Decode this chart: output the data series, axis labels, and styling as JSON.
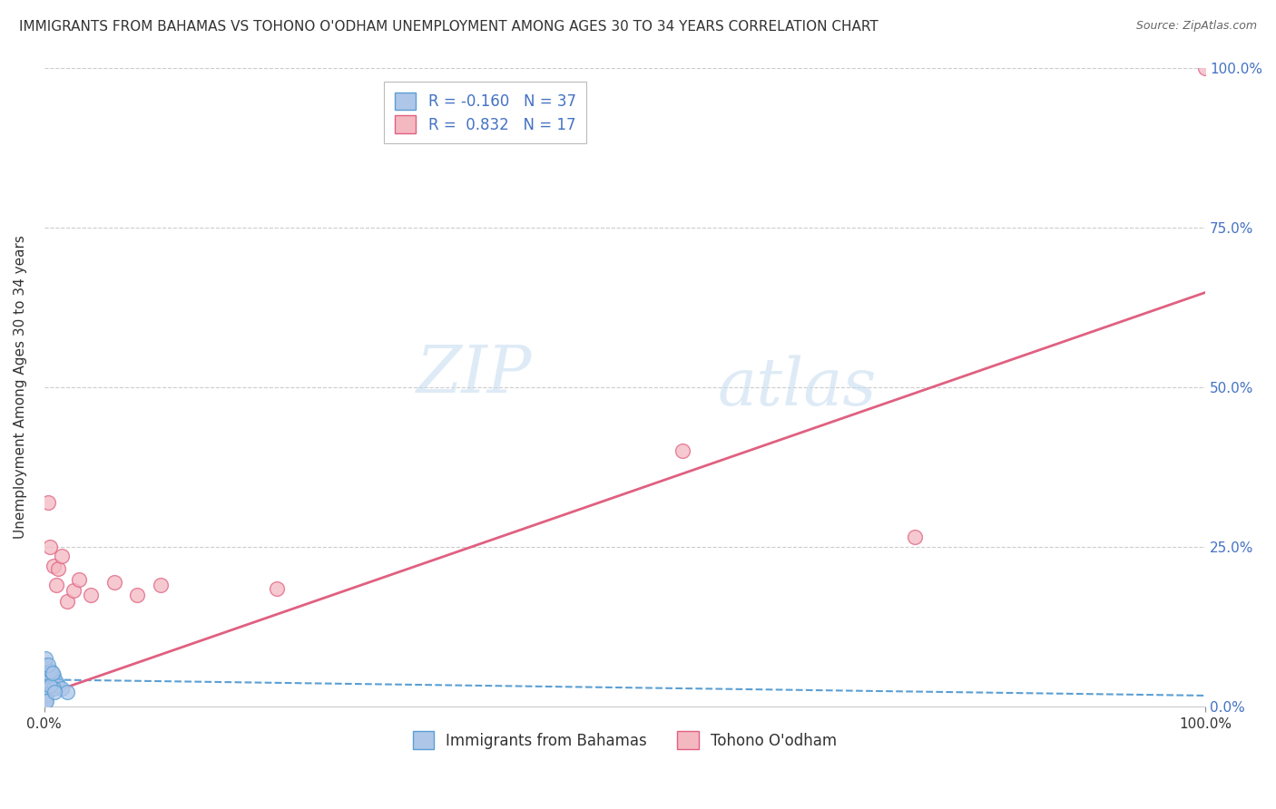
{
  "title": "IMMIGRANTS FROM BAHAMAS VS TOHONO O'ODHAM UNEMPLOYMENT AMONG AGES 30 TO 34 YEARS CORRELATION CHART",
  "source": "Source: ZipAtlas.com",
  "ylabel": "Unemployment Among Ages 30 to 34 years",
  "xlabel_blue": "Immigrants from Bahamas",
  "xlabel_pink": "Tohono O'odham",
  "xlim": [
    0,
    1.0
  ],
  "ylim": [
    0,
    1.0
  ],
  "xtick_vals": [
    0,
    1.0
  ],
  "xtick_labels": [
    "0.0%",
    "100.0%"
  ],
  "ytick_vals": [
    0,
    0.25,
    0.5,
    0.75,
    1.0
  ],
  "ytick_labels_right": [
    "0.0%",
    "25.0%",
    "50.0%",
    "75.0%",
    "100.0%"
  ],
  "blue_R": -0.16,
  "blue_N": 37,
  "pink_R": 0.832,
  "pink_N": 17,
  "blue_color": "#aec6e8",
  "pink_color": "#f4b8c1",
  "blue_edge_color": "#5a9fd4",
  "pink_edge_color": "#e06080",
  "blue_line_color": "#5a9fd4",
  "pink_line_color": "#e06080",
  "blue_scatter": [
    [
      0.001,
      0.045
    ],
    [
      0.001,
      0.038
    ],
    [
      0.001,
      0.028
    ],
    [
      0.001,
      0.022
    ],
    [
      0.002,
      0.048
    ],
    [
      0.002,
      0.038
    ],
    [
      0.002,
      0.032
    ],
    [
      0.003,
      0.055
    ],
    [
      0.003,
      0.048
    ],
    [
      0.004,
      0.042
    ],
    [
      0.004,
      0.038
    ],
    [
      0.005,
      0.052
    ],
    [
      0.005,
      0.045
    ],
    [
      0.006,
      0.042
    ],
    [
      0.007,
      0.038
    ],
    [
      0.008,
      0.048
    ],
    [
      0.01,
      0.038
    ],
    [
      0.012,
      0.033
    ],
    [
      0.015,
      0.028
    ],
    [
      0.02,
      0.022
    ],
    [
      0.001,
      0.055
    ],
    [
      0.001,
      0.065
    ],
    [
      0.002,
      0.06
    ],
    [
      0.003,
      0.052
    ],
    [
      0.004,
      0.028
    ],
    [
      0.001,
      0.018
    ],
    [
      0.001,
      0.014
    ],
    [
      0.002,
      0.018
    ],
    [
      0.006,
      0.055
    ],
    [
      0.008,
      0.028
    ],
    [
      0.001,
      0.009
    ],
    [
      0.002,
      0.009
    ],
    [
      0.001,
      0.075
    ],
    [
      0.003,
      0.065
    ],
    [
      0.005,
      0.032
    ],
    [
      0.007,
      0.052
    ],
    [
      0.009,
      0.022
    ]
  ],
  "pink_scatter": [
    [
      0.003,
      0.32
    ],
    [
      0.008,
      0.22
    ],
    [
      0.012,
      0.215
    ],
    [
      0.015,
      0.235
    ],
    [
      0.02,
      0.165
    ],
    [
      0.025,
      0.182
    ],
    [
      0.03,
      0.198
    ],
    [
      0.04,
      0.175
    ],
    [
      0.06,
      0.195
    ],
    [
      0.1,
      0.19
    ],
    [
      0.2,
      0.185
    ],
    [
      0.55,
      0.4
    ],
    [
      0.75,
      0.265
    ],
    [
      1.0,
      1.0
    ],
    [
      0.005,
      0.25
    ],
    [
      0.01,
      0.19
    ],
    [
      0.08,
      0.175
    ]
  ],
  "blue_slope": -0.025,
  "blue_intercept": 0.042,
  "pink_slope": 0.63,
  "pink_intercept": 0.018,
  "watermark_zip": "ZIP",
  "watermark_atlas": "atlas",
  "background_color": "#ffffff",
  "grid_color": "#cccccc",
  "title_fontsize": 11,
  "axis_label_fontsize": 11,
  "tick_fontsize": 11,
  "legend_fontsize": 12
}
